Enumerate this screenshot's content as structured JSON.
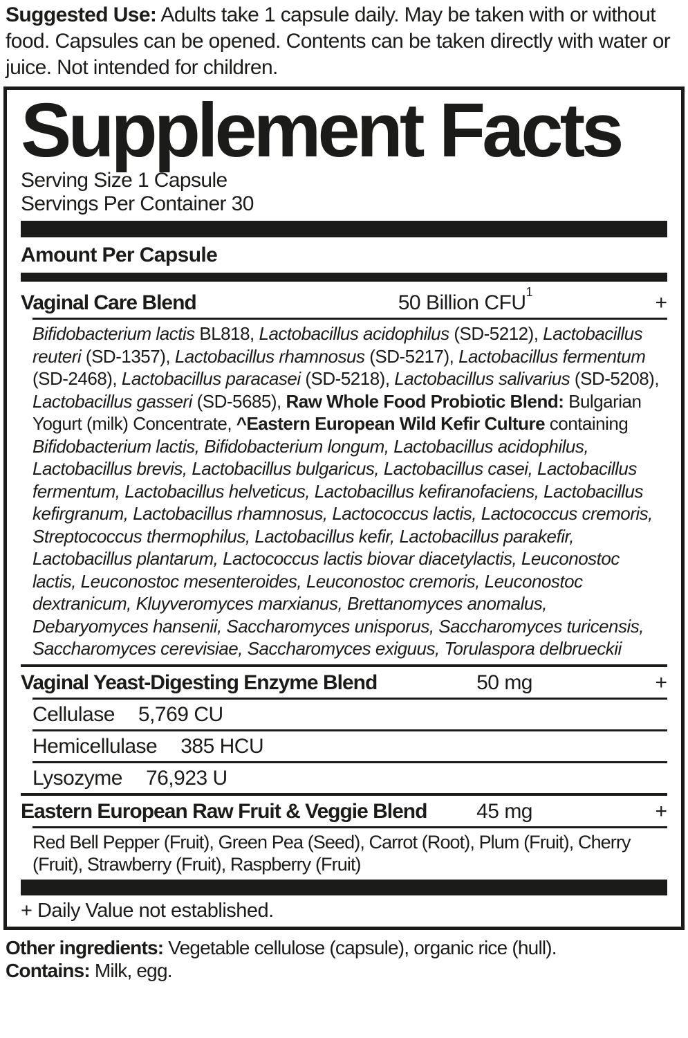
{
  "colors": {
    "ink": "#1b1b19",
    "background": "#ffffff"
  },
  "suggested_use": {
    "label": "Suggested Use:",
    "text": " Adults take 1 capsule daily. May be taken with or without food. Capsules can be opened. Contents can be taken directly with water or juice. Not intended for children."
  },
  "panel": {
    "title": "Supplement Facts",
    "serving_size": "Serving Size 1 Capsule",
    "servings_per_container": "Servings Per Container 30",
    "amount_header": "Amount Per Capsule",
    "blends": [
      {
        "name": "Vaginal Care Blend",
        "amount": "50 Billion CFU",
        "amount_sup": "1",
        "dv": "+"
      },
      {
        "name": "Vaginal Yeast-Digesting Enzyme Blend",
        "amount": "50 mg",
        "dv": "+"
      },
      {
        "name": "Eastern European Raw Fruit & Veggie Blend",
        "amount": "45 mg",
        "dv": "+"
      }
    ],
    "probiotic_segments": [
      {
        "s": "i",
        "t": "Bifidobacterium lactis"
      },
      {
        "s": "n",
        "t": " BL818, "
      },
      {
        "s": "i",
        "t": "Lactobacillus acidophilus"
      },
      {
        "s": "n",
        "t": " (SD-5212), "
      },
      {
        "s": "i",
        "t": "Lactobacillus reuteri"
      },
      {
        "s": "n",
        "t": " (SD-1357), "
      },
      {
        "s": "i",
        "t": "Lactobacillus rhamnosus"
      },
      {
        "s": "n",
        "t": " (SD-5217), "
      },
      {
        "s": "i",
        "t": "Lactobacillus fermentum"
      },
      {
        "s": "n",
        "t": " (SD-2468), "
      },
      {
        "s": "i",
        "t": "Lactobacillus paracasei"
      },
      {
        "s": "n",
        "t": " (SD-5218), "
      },
      {
        "s": "i",
        "t": "Lactobacillus salivarius"
      },
      {
        "s": "n",
        "t": " (SD-5208), "
      },
      {
        "s": "i",
        "t": "Lactobacillus gasseri"
      },
      {
        "s": "n",
        "t": " (SD-5685), "
      },
      {
        "s": "b",
        "t": "Raw Whole Food Probiotic Blend:"
      },
      {
        "s": "n",
        "t": " Bulgarian Yogurt (milk) Concentrate, "
      },
      {
        "s": "b",
        "t": "^Eastern European Wild Kefir Culture"
      },
      {
        "s": "n",
        "t": " containing "
      },
      {
        "s": "i",
        "t": "Bifidobacterium lactis, Bifidobacterium longum, Lactobacillus acidophilus, Lactobacillus brevis, Lactobacillus bulgaricus, Lactobacillus casei, Lactobacillus fermentum, Lactobacillus helveticus, Lactobacillus kefiranofaciens, Lactobacillus kefirgranum, Lactobacillus rhamnosus, Lactococcus lactis, Lactococcus cremoris, Streptococcus thermophilus, Lactobacillus kefir, Lactobacillus parakefir, Lactobacillus plantarum, Lactococcus lactis biovar diacetylactis, Leuconostoc lactis, Leuconostoc mesenteroides, Leuconostoc cremoris, Leuconostoc dextranicum, Kluyveromyces marxianus, Brettanomyces anomalus, Debaryomyces hansenii, Saccharomyces unisporus, Saccharomyces turicensis, Saccharomyces cerevisiae, Saccharomyces exiguus, Torulaspora delbrueckii"
      }
    ],
    "enzyme_rows": [
      {
        "name": "Cellulase",
        "amount": "5,769 CU"
      },
      {
        "name": "Hemicellulase",
        "amount": "385 HCU"
      },
      {
        "name": "Lysozyme",
        "amount": "76,923 U"
      }
    ],
    "fruit_list": "Red Bell Pepper (Fruit), Green Pea (Seed), Carrot (Root), Plum (Fruit), Cherry (Fruit), Strawberry (Fruit), Raspberry (Fruit)",
    "footnote": "+ Daily Value not established."
  },
  "footer": {
    "other_label": "Other ingredients:",
    "other_text": " Vegetable cellulose (capsule), organic rice (hull).",
    "contains_label": "Contains:",
    "contains_text": " Milk, egg."
  }
}
